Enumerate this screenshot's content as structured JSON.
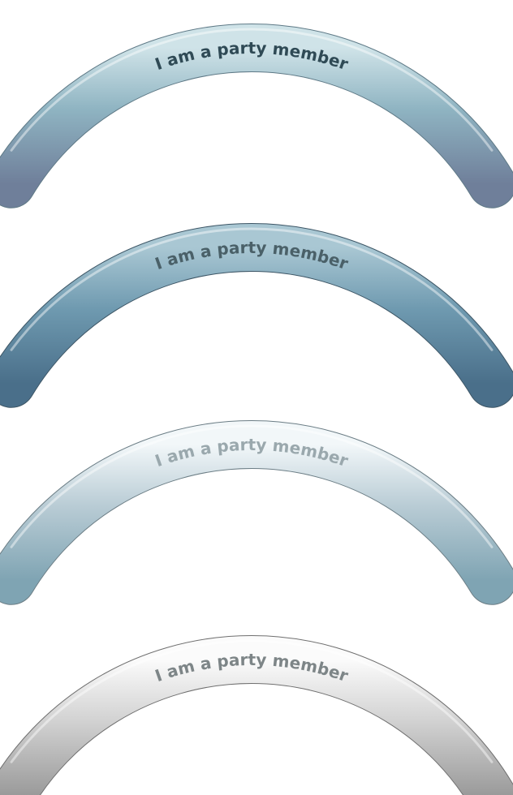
{
  "banners": [
    {
      "text": "I am a party member",
      "colors": {
        "top": "#cfe3e8",
        "mid": "#8fb4c2",
        "bottom": "#6f7f9a",
        "stroke": "#5e7986",
        "text": "#2f4a55"
      }
    },
    {
      "text": "I am a party member",
      "colors": {
        "top": "#a9c7d3",
        "mid": "#6f9ab0",
        "bottom": "#4a6f8a",
        "stroke": "#3c5565",
        "text": "#4a6068"
      }
    },
    {
      "text": "I am a party member",
      "colors": {
        "top": "#f2f7f9",
        "mid": "#b9ccd5",
        "bottom": "#7fa4b3",
        "stroke": "#6b7d85",
        "text": "#9aa8ad"
      }
    },
    {
      "text": "I am a party member",
      "colors": {
        "top": "#fbfbfb",
        "mid": "#d2d2d2",
        "bottom": "#9a9a9a",
        "stroke": "#6f6f6f",
        "text": "#7d8587"
      }
    }
  ]
}
